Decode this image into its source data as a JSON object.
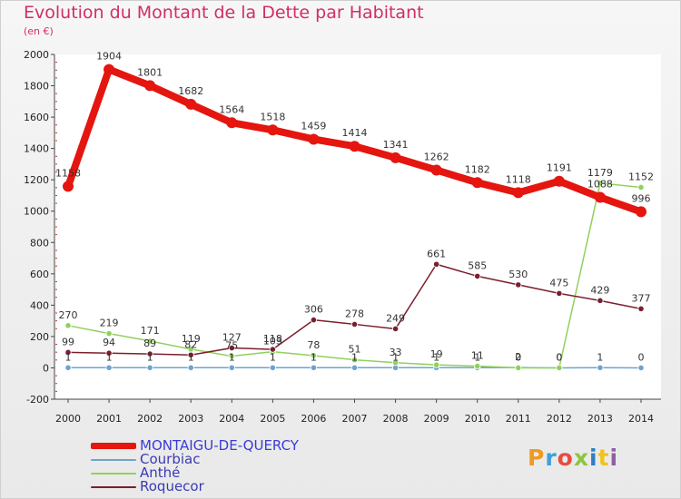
{
  "header": {
    "title": "Evolution du Montant de la Dette par Habitant",
    "subtitle": "(en €)"
  },
  "logo": {
    "text": "Proxiti",
    "colors": [
      "#f09a1f",
      "#3aa0d8",
      "#e84c3d",
      "#8cc63f",
      "#2f7fc1",
      "#f0c419",
      "#8e5ea2"
    ]
  },
  "chart_data": {
    "type": "line",
    "title": "Evolution du Montant de la Dette par Habitant",
    "subtitle": "(en €)",
    "xlabel": "",
    "ylabel": "",
    "ylim": [
      -200,
      2000
    ],
    "yticks": [
      -200,
      0,
      200,
      400,
      600,
      800,
      1000,
      1200,
      1400,
      1600,
      1800,
      2000
    ],
    "grid": false,
    "legend_position": "bottom-left",
    "x": [
      2000,
      2001,
      2002,
      2003,
      2004,
      2005,
      2006,
      2007,
      2008,
      2009,
      2010,
      2011,
      2012,
      2013,
      2014
    ],
    "series": [
      {
        "name": "MONTAIGU-DE-QUERCY",
        "color": "#e5150f",
        "values": [
          1158,
          1904,
          1801,
          1682,
          1564,
          1518,
          1459,
          1414,
          1341,
          1262,
          1182,
          1118,
          1191,
          1088,
          996
        ]
      },
      {
        "name": "Courbiac",
        "color": "#6ea3cf",
        "values": [
          1,
          1,
          1,
          1,
          1,
          1,
          1,
          1,
          1,
          1,
          1,
          2,
          0,
          1,
          0
        ]
      },
      {
        "name": "Anthé",
        "color": "#8fd15c",
        "values": [
          270,
          219,
          171,
          119,
          75,
          103,
          78,
          51,
          33,
          19,
          11,
          0,
          0,
          1179,
          1152
        ]
      },
      {
        "name": "Roquecor",
        "color": "#7a1f2c",
        "values": [
          99,
          94,
          89,
          82,
          127,
          118,
          306,
          278,
          249,
          661,
          585,
          530,
          475,
          429,
          377
        ]
      }
    ]
  }
}
